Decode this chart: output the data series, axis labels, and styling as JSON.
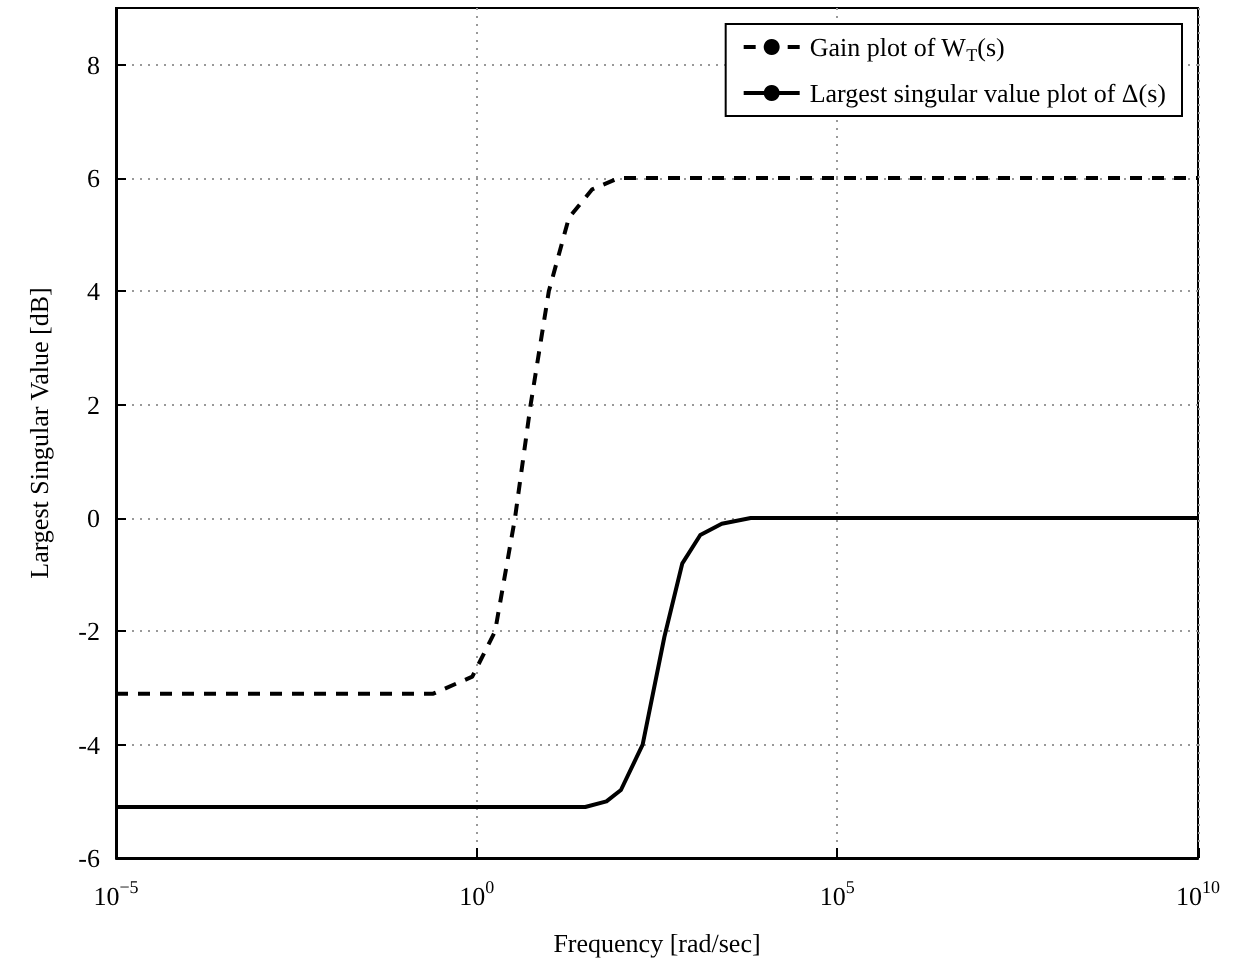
{
  "chart_data": {
    "type": "line",
    "xlabel": "Frequency [rad/sec]",
    "ylabel": "Largest Singular Value [dB]",
    "log": "x",
    "grid": true,
    "legend": "top right",
    "marker": "none",
    "xlim": [
      1e-05,
      10000000000.0
    ],
    "xticks": [
      {
        "value": 1e-05,
        "label": "10$^{−5}$"
      },
      {
        "value": 1,
        "label": "10$^{0}$"
      },
      {
        "value": 100000.0,
        "label": "10$^{5}$"
      },
      {
        "value": 10000000000.0,
        "label": "10$^{10}$"
      }
    ],
    "ylim": [
      -6,
      9
    ],
    "yticks": [
      -6,
      -4,
      -2,
      0,
      2,
      4,
      6,
      8
    ],
    "series": [
      {
        "name": "Gain plot of W$_{T}$(s)",
        "color": "#000000",
        "line_style": "dashed",
        "x": [
          1e-05,
          0.006,
          0.25,
          0.87,
          1.8,
          3.4,
          5.6,
          10,
          19,
          40,
          93,
          10000000000.0
        ],
        "values": [
          -3.1,
          -3.1,
          -3.1,
          -2.8,
          -2.0,
          0,
          2.0,
          4.0,
          5.3,
          5.8,
          6.0,
          6.0
        ]
      },
      {
        "name": "Largest singular value plot of Δ(s)",
        "color": "#000000",
        "line_style": "solid",
        "x": [
          1e-05,
          32,
          63,
          100,
          200,
          400,
          710,
          1260,
          2500,
          6300,
          10000000000.0
        ],
        "values": [
          -5.1,
          -5.1,
          -5.0,
          -4.8,
          -4.0,
          -2.1,
          -0.8,
          -0.3,
          -0.1,
          0,
          0
        ]
      }
    ]
  }
}
